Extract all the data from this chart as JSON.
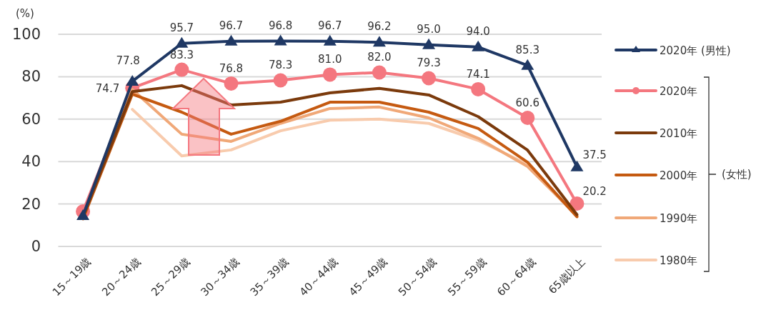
{
  "chart_data": {
    "type": "line",
    "ylabel": "(%)",
    "categories": [
      "15～19歳",
      "20～24歳",
      "25～29歳",
      "30～34歳",
      "35～39歳",
      "40～44歳",
      "45～49歳",
      "50～54歳",
      "55～59歳",
      "60～64歳",
      "65歳以上"
    ],
    "series": [
      {
        "name": "2020年 (男性)",
        "color": "#1f3864",
        "marker": "triangle",
        "values": [
          14.5,
          77.8,
          95.7,
          96.7,
          96.8,
          96.7,
          96.2,
          95.0,
          94.0,
          85.3,
          37.5
        ],
        "value_labels": [
          null,
          "77.8",
          "95.7",
          "96.7",
          "96.8",
          "96.7",
          "96.2",
          "95.0",
          "94.0",
          "85.3",
          "37.5"
        ]
      },
      {
        "name": "2020年",
        "color": "#f4777f",
        "marker": "circle",
        "values": [
          16.5,
          74.7,
          83.3,
          76.8,
          78.3,
          81.0,
          82.0,
          79.3,
          74.1,
          60.6,
          20.2
        ],
        "value_labels": [
          null,
          "74.7",
          "83.3",
          "76.8",
          "78.3",
          "81.0",
          "82.0",
          "79.3",
          "74.1",
          "60.6",
          "20.2"
        ]
      },
      {
        "name": "2010年",
        "color": "#7b3a0c",
        "marker": "none",
        "values": [
          14,
          73,
          75.8,
          66.7,
          68,
          72.4,
          74.5,
          71.4,
          61.2,
          45.4,
          15
        ]
      },
      {
        "name": "2000年",
        "color": "#c55a11",
        "marker": "none",
        "values": [
          13,
          71.8,
          63.3,
          52.9,
          59,
          68,
          68,
          63.3,
          55.6,
          39.7,
          14
        ]
      },
      {
        "name": "1990年",
        "color": "#f0a878",
        "marker": "none",
        "values": [
          14.5,
          74,
          52.9,
          49.5,
          58,
          65,
          65.7,
          60.6,
          51,
          37.7,
          14.5
        ]
      },
      {
        "name": "1980年",
        "color": "#f8cbad",
        "marker": "none",
        "values": [
          null,
          64.6,
          42.7,
          45.5,
          54.5,
          59.5,
          60,
          58,
          50,
          38.7,
          14
        ]
      }
    ],
    "ylim": [
      0,
      100
    ],
    "yticks": [
      0,
      20,
      40,
      60,
      80,
      100
    ],
    "grid": "y",
    "legend": "right",
    "annotations": [
      "(女性)"
    ]
  }
}
